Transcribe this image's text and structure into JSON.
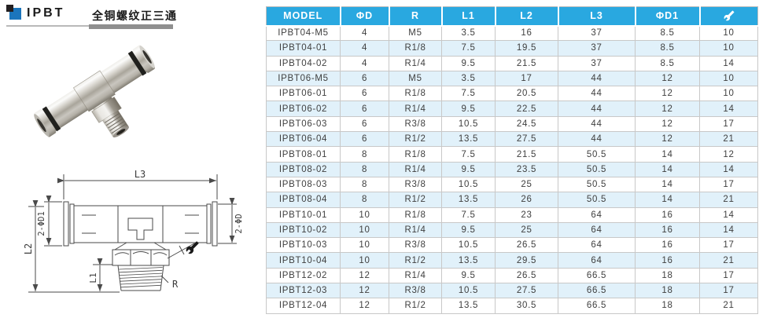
{
  "header": {
    "product_code": "IPBT",
    "product_name_cn": "全铜螺纹正三通"
  },
  "table": {
    "columns": [
      "MODEL",
      "ΦD",
      "R",
      "L1",
      "L2",
      "L3",
      "ΦD1"
    ],
    "last_column_icon": "wrench-icon",
    "rows": [
      [
        "IPBT04-M5",
        "4",
        "M5",
        "3.5",
        "16",
        "37",
        "8.5",
        "10"
      ],
      [
        "IPBT04-01",
        "4",
        "R1/8",
        "7.5",
        "19.5",
        "37",
        "8.5",
        "10"
      ],
      [
        "IPBT04-02",
        "4",
        "R1/4",
        "9.5",
        "21.5",
        "37",
        "8.5",
        "14"
      ],
      [
        "IPBT06-M5",
        "6",
        "M5",
        "3.5",
        "17",
        "44",
        "12",
        "10"
      ],
      [
        "IPBT06-01",
        "6",
        "R1/8",
        "7.5",
        "20.5",
        "44",
        "12",
        "10"
      ],
      [
        "IPBT06-02",
        "6",
        "R1/4",
        "9.5",
        "22.5",
        "44",
        "12",
        "14"
      ],
      [
        "IPBT06-03",
        "6",
        "R3/8",
        "10.5",
        "24.5",
        "44",
        "12",
        "17"
      ],
      [
        "IPBT06-04",
        "6",
        "R1/2",
        "13.5",
        "27.5",
        "44",
        "12",
        "21"
      ],
      [
        "IPBT08-01",
        "8",
        "R1/8",
        "7.5",
        "21.5",
        "50.5",
        "14",
        "12"
      ],
      [
        "IPBT08-02",
        "8",
        "R1/4",
        "9.5",
        "23.5",
        "50.5",
        "14",
        "14"
      ],
      [
        "IPBT08-03",
        "8",
        "R3/8",
        "10.5",
        "25",
        "50.5",
        "14",
        "17"
      ],
      [
        "IPBT08-04",
        "8",
        "R1/2",
        "13.5",
        "26",
        "50.5",
        "14",
        "21"
      ],
      [
        "IPBT10-01",
        "10",
        "R1/8",
        "7.5",
        "23",
        "64",
        "16",
        "14"
      ],
      [
        "IPBT10-02",
        "10",
        "R1/4",
        "9.5",
        "25",
        "64",
        "16",
        "14"
      ],
      [
        "IPBT10-03",
        "10",
        "R3/8",
        "10.5",
        "26.5",
        "64",
        "16",
        "17"
      ],
      [
        "IPBT10-04",
        "10",
        "R1/2",
        "13.5",
        "29.5",
        "64",
        "16",
        "21"
      ],
      [
        "IPBT12-02",
        "12",
        "R1/4",
        "9.5",
        "26.5",
        "66.5",
        "18",
        "17"
      ],
      [
        "IPBT12-03",
        "12",
        "R3/8",
        "10.5",
        "27.5",
        "66.5",
        "18",
        "17"
      ],
      [
        "IPBT12-04",
        "12",
        "R1/2",
        "13.5",
        "30.5",
        "66.5",
        "18",
        "21"
      ]
    ]
  },
  "drawing": {
    "dim_l3": "L3",
    "dim_d1": "2-ΦD1",
    "dim_d": "2-ΦD",
    "dim_l2": "L2",
    "dim_l1": "L1",
    "dim_r": "R"
  },
  "colors": {
    "table_header_bg": "#29A8E0",
    "table_row_alt": "#E1F1FA",
    "logo_blue": "#1B75BC",
    "logo_black": "#231F20"
  }
}
